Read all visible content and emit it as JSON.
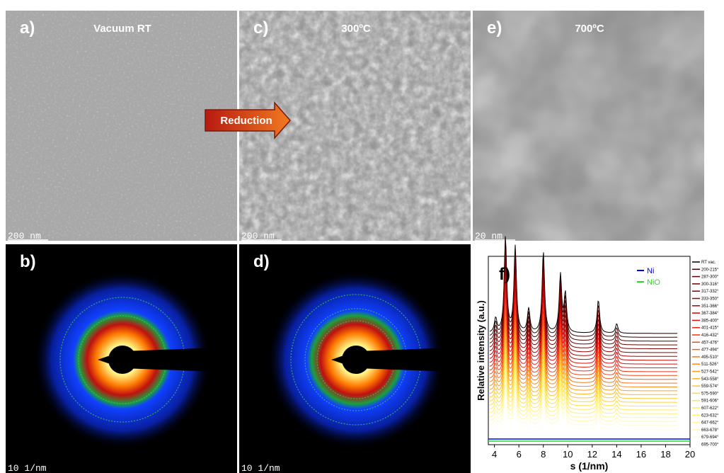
{
  "panels": [
    {
      "label": "a)",
      "title": "Vacuum RT",
      "scale_bar": "200 nm"
    },
    {
      "label": "c)",
      "title": "300ºC",
      "scale_bar": "200 nm"
    },
    {
      "label": "e)",
      "title": "700ºC",
      "scale_bar": "20 nm"
    },
    {
      "label": "b)",
      "scale_bar": "10 1/nm"
    },
    {
      "label": "d)",
      "scale_bar": "10 1/nm"
    }
  ],
  "arrow": {
    "label": "Reduction"
  },
  "chart_data": {
    "type": "line",
    "label": "f)",
    "xlabel": "s (1/nm)",
    "ylabel": "Relative intensity (a.u.)",
    "xlim": [
      3.5,
      20
    ],
    "xticks": [
      4,
      6,
      8,
      10,
      12,
      14,
      16,
      18,
      20
    ],
    "peak_x": [
      4.1,
      4.9,
      5.7,
      6.8,
      8.0,
      9.4,
      9.8,
      12.5,
      14.0
    ],
    "peak_height": [
      0.15,
      1.0,
      0.9,
      0.25,
      0.85,
      0.6,
      0.4,
      0.35,
      0.1
    ],
    "references": [
      {
        "name": "Ni",
        "color": "#0000ff"
      },
      {
        "name": "NiO",
        "color": "#22dd22"
      }
    ],
    "series": [
      {
        "name": "RT vac.",
        "color": "#000000"
      },
      {
        "name": "200-215°",
        "color": "#3a0000"
      },
      {
        "name": "287-300°",
        "color": "#520000"
      },
      {
        "name": "300-316°",
        "color": "#6a0000"
      },
      {
        "name": "317-332°",
        "color": "#820000"
      },
      {
        "name": "333-350°",
        "color": "#990000"
      },
      {
        "name": "351-366°",
        "color": "#b00000"
      },
      {
        "name": "367-384°",
        "color": "#c40808"
      },
      {
        "name": "385-400°",
        "color": "#d81010"
      },
      {
        "name": "401-415°",
        "color": "#e82010"
      },
      {
        "name": "416-432°",
        "color": "#f03010"
      },
      {
        "name": "457-476°",
        "color": "#f44814"
      },
      {
        "name": "477-494°",
        "color": "#f66018"
      },
      {
        "name": "495-510°",
        "color": "#f8781c"
      },
      {
        "name": "511-526°",
        "color": "#fa8c20"
      },
      {
        "name": "527-542°",
        "color": "#fca024"
      },
      {
        "name": "543-558°",
        "color": "#fdb42a"
      },
      {
        "name": "559-574°",
        "color": "#fec632"
      },
      {
        "name": "575-590°",
        "color": "#ffd63c"
      },
      {
        "name": "591-606°",
        "color": "#ffe24e"
      },
      {
        "name": "607-622°",
        "color": "#ffea66"
      },
      {
        "name": "623-632°",
        "color": "#fff080"
      },
      {
        "name": "647-662°",
        "color": "#fff49c"
      },
      {
        "name": "663-678°",
        "color": "#fff8b8"
      },
      {
        "name": "679-694°",
        "color": "#fffbd4"
      },
      {
        "name": "695-700°",
        "color": "#fffdec"
      }
    ]
  }
}
